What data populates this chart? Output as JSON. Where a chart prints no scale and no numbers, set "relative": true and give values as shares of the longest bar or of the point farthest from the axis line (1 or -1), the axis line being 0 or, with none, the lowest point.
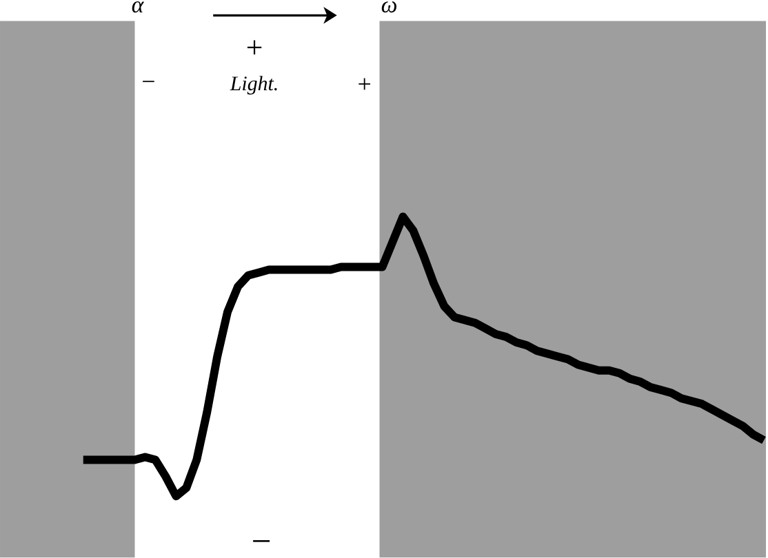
{
  "chart_data": {
    "type": "line",
    "relative": true,
    "color": "#000000",
    "marker": "none",
    "categories": [
      null,
      null,
      null,
      null,
      null,
      null,
      null,
      null,
      null,
      null,
      null,
      null,
      null,
      null,
      null,
      null,
      null,
      null,
      null,
      null,
      null,
      null,
      null,
      null,
      null,
      null,
      null,
      null,
      null,
      null,
      null,
      null,
      null,
      null,
      null,
      null,
      null,
      null,
      null,
      null,
      null,
      null,
      null,
      null,
      null,
      null,
      null,
      null,
      null,
      null,
      null,
      null,
      null,
      null,
      null,
      null,
      null,
      null,
      null,
      null,
      null,
      null,
      null,
      null,
      null,
      null,
      null
    ],
    "values": [
      0.13,
      0.13,
      0.13,
      0.13,
      0.13,
      0.13,
      0.14,
      0.13,
      0.07,
      0,
      0.03,
      0.13,
      0.3,
      0.5,
      0.66,
      0.75,
      0.79,
      0.8,
      0.81,
      0.81,
      0.81,
      0.81,
      0.81,
      0.81,
      0.81,
      0.82,
      0.82,
      0.82,
      0.82,
      0.82,
      0.91,
      1.0,
      0.95,
      0.86,
      0.76,
      0.68,
      0.64,
      0.63,
      0.62,
      0.6,
      0.58,
      0.57,
      0.55,
      0.54,
      0.52,
      0.51,
      0.5,
      0.49,
      0.47,
      0.46,
      0.45,
      0.45,
      0.44,
      0.42,
      0.41,
      0.39,
      0.38,
      0.37,
      0.35,
      0.34,
      0.33,
      0.31,
      0.29,
      0.27,
      0.25,
      0.22,
      0.2
    ],
    "annotations": [
      "α",
      "+",
      "Light.",
      "−",
      "+",
      "ω",
      "−"
    ]
  }
}
